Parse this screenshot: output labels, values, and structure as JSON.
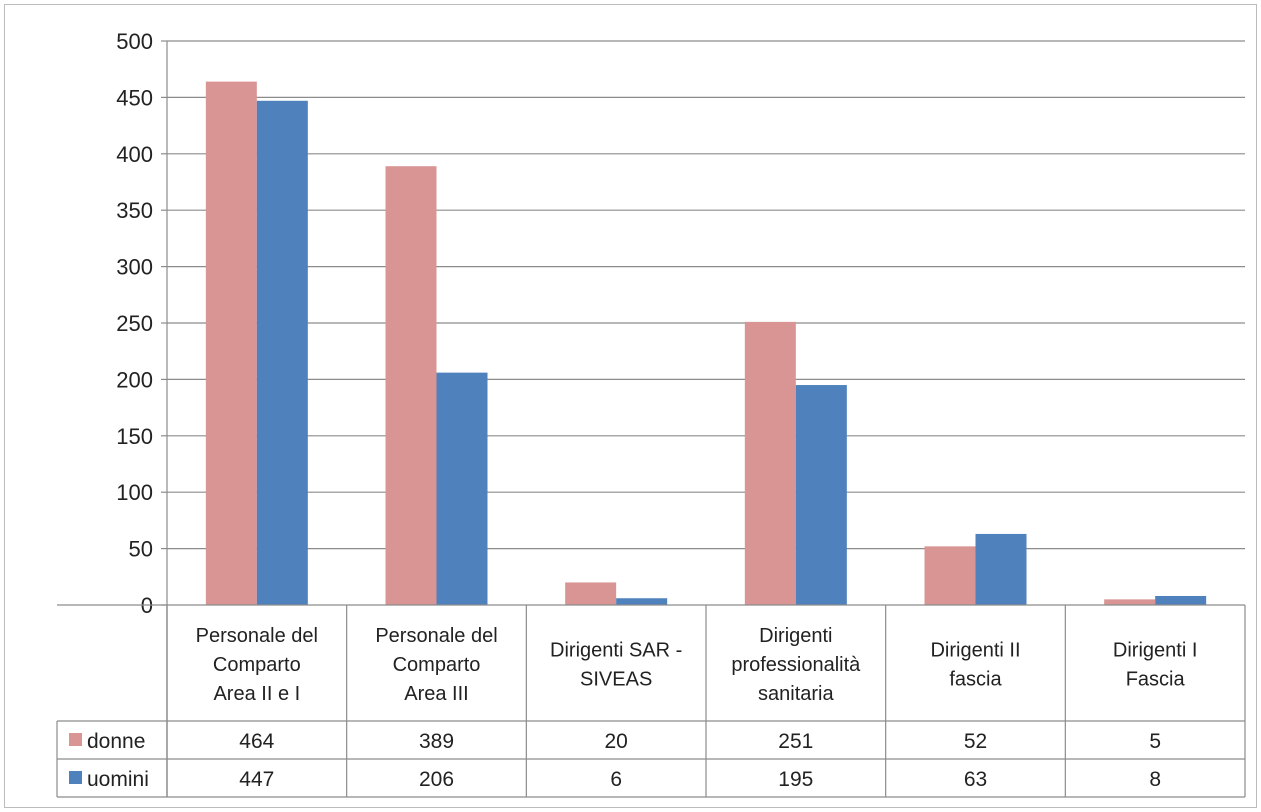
{
  "chart_data": {
    "type": "bar",
    "categories": [
      [
        "Personale del",
        "Comparto",
        "Area II e I"
      ],
      [
        "Personale del",
        "Comparto",
        "Area III"
      ],
      [
        "Dirigenti SAR -",
        "SIVEAS"
      ],
      [
        "Dirigenti",
        "professionalità",
        "sanitaria"
      ],
      [
        "Dirigenti II",
        "fascia"
      ],
      [
        "Dirigenti I",
        "Fascia"
      ]
    ],
    "series": [
      {
        "name": "donne",
        "color": "#d99594",
        "values": [
          464,
          389,
          20,
          251,
          52,
          5
        ]
      },
      {
        "name": "uomini",
        "color": "#4f81bd",
        "values": [
          447,
          206,
          6,
          195,
          63,
          8
        ]
      }
    ],
    "ylim": [
      0,
      500
    ],
    "yticks": [
      0,
      50,
      100,
      150,
      200,
      250,
      300,
      350,
      400,
      450,
      500
    ],
    "grid": true,
    "legend": "data-table-left",
    "colors": {
      "gridline": "#8c8c8c",
      "border": "#8c8c8c"
    }
  }
}
